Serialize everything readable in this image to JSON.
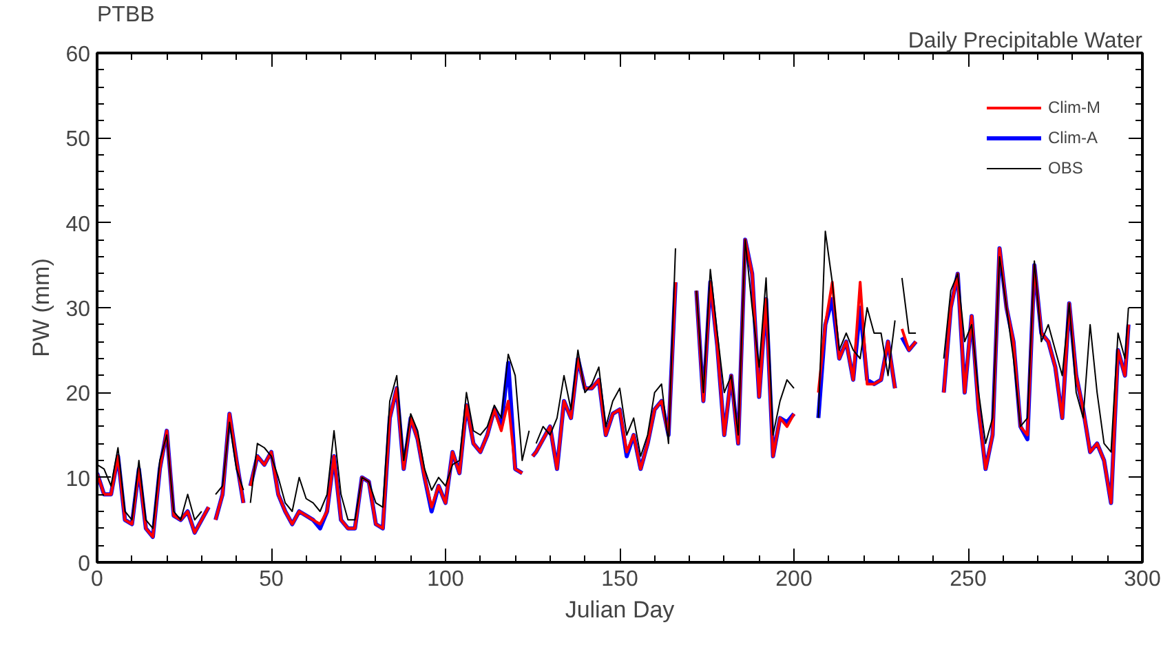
{
  "chart_data": {
    "type": "line",
    "title": "PTBB",
    "subtitle": "Daily Precipitable Water",
    "xlabel": "Julian Day",
    "ylabel": "PW (mm)",
    "xlim": [
      0,
      300
    ],
    "xticks": [
      0,
      50,
      100,
      150,
      200,
      250,
      300
    ],
    "ylim": [
      0,
      60
    ],
    "yticks": [
      0,
      10,
      20,
      30,
      40,
      50,
      60
    ],
    "grid": false,
    "legend": "top right",
    "marker": "none",
    "line_style": "solid",
    "series": [
      {
        "name": "Clim-M",
        "color": "#ff0000",
        "x": [
          0,
          2,
          4,
          6,
          8,
          10,
          12,
          14,
          16,
          18,
          20,
          22,
          24,
          26,
          28,
          30,
          32,
          33,
          34,
          36,
          38,
          40,
          42,
          43,
          44,
          46,
          48,
          50,
          52,
          54,
          56,
          58,
          60,
          62,
          64,
          66,
          68,
          70,
          72,
          74,
          76,
          78,
          80,
          82,
          84,
          86,
          88,
          90,
          92,
          94,
          96,
          98,
          100,
          102,
          104,
          106,
          108,
          110,
          112,
          114,
          116,
          118,
          120,
          122,
          123,
          125,
          126,
          128,
          130,
          132,
          134,
          136,
          138,
          140,
          142,
          144,
          146,
          148,
          150,
          152,
          154,
          156,
          158,
          160,
          162,
          164,
          166,
          169,
          172,
          174,
          176,
          178,
          180,
          182,
          184,
          186,
          188,
          190,
          192,
          194,
          196,
          198,
          200,
          204,
          207,
          209,
          211,
          213,
          215,
          217,
          219,
          221,
          223,
          225,
          227,
          229,
          230,
          231,
          233,
          235,
          239,
          243,
          245,
          247,
          249,
          251,
          253,
          255,
          257,
          259,
          261,
          263,
          265,
          267,
          269,
          271,
          273,
          275,
          277,
          279,
          281,
          283,
          285,
          287,
          289,
          291,
          293,
          295,
          296
        ],
        "values": [
          10.5,
          8,
          8,
          12.5,
          5,
          4.5,
          11,
          4,
          3,
          11,
          15.5,
          5.5,
          5,
          6,
          3.5,
          5,
          6.5,
          null,
          5,
          8,
          17.5,
          12,
          7,
          null,
          9,
          12.5,
          11.5,
          13,
          8,
          6,
          4.5,
          6,
          5.5,
          5,
          4.5,
          6,
          12.5,
          5,
          4,
          4,
          10,
          9.5,
          4.5,
          4,
          17,
          20.5,
          11,
          17,
          14.5,
          10,
          6.5,
          9,
          7,
          13,
          10.5,
          18.5,
          14,
          13,
          15,
          18,
          15.5,
          19,
          11,
          10.5,
          null,
          12.5,
          13,
          14.5,
          16,
          11,
          19,
          17,
          24,
          20.5,
          20.5,
          21.5,
          15,
          17.5,
          18,
          13,
          15,
          11,
          14,
          18,
          19,
          15,
          33,
          null,
          32,
          19,
          33,
          25.5,
          15,
          22,
          14,
          38,
          34,
          19.5,
          31,
          12.5,
          17,
          16,
          17.5,
          null,
          20,
          28,
          33,
          24,
          26,
          21.5,
          33,
          21,
          21,
          21.5,
          26,
          20.5,
          null,
          27.5,
          25,
          26,
          null,
          20,
          30,
          34,
          20,
          29,
          18,
          11,
          15,
          37,
          30,
          26,
          16,
          15,
          35,
          27,
          26,
          23,
          17,
          30.5,
          22,
          18,
          13,
          14,
          12,
          7,
          25,
          22,
          28
        ]
      },
      {
        "name": "Clim-A",
        "color": "#0000ff",
        "x": [
          0,
          2,
          4,
          6,
          8,
          10,
          12,
          14,
          16,
          18,
          20,
          22,
          24,
          26,
          28,
          30,
          32,
          33,
          34,
          36,
          38,
          40,
          42,
          43,
          44,
          46,
          48,
          50,
          52,
          54,
          56,
          58,
          60,
          62,
          64,
          66,
          68,
          70,
          72,
          74,
          76,
          78,
          80,
          82,
          84,
          86,
          88,
          90,
          92,
          94,
          96,
          98,
          100,
          102,
          104,
          106,
          108,
          110,
          112,
          114,
          116,
          118,
          120,
          122,
          123,
          125,
          126,
          128,
          130,
          132,
          134,
          136,
          138,
          140,
          142,
          144,
          146,
          148,
          150,
          152,
          154,
          156,
          158,
          160,
          162,
          164,
          166,
          169,
          172,
          174,
          176,
          178,
          180,
          182,
          184,
          186,
          188,
          190,
          192,
          194,
          196,
          198,
          200,
          204,
          207,
          209,
          211,
          213,
          215,
          217,
          219,
          221,
          223,
          225,
          227,
          229,
          230,
          231,
          233,
          235,
          239,
          243,
          245,
          247,
          249,
          251,
          253,
          255,
          257,
          259,
          261,
          263,
          265,
          267,
          269,
          271,
          273,
          275,
          277,
          279,
          281,
          283,
          285,
          287,
          289,
          291,
          293,
          295,
          296
        ],
        "values": [
          10.5,
          8,
          8,
          12.5,
          5,
          4.5,
          11,
          4,
          3,
          11,
          15.5,
          5.5,
          5,
          6,
          3.5,
          5,
          6.5,
          null,
          5,
          8,
          17.5,
          12,
          7,
          null,
          9,
          12.5,
          11.5,
          13,
          8,
          6,
          4.5,
          6,
          5.5,
          5,
          4,
          6,
          12.5,
          5,
          4,
          4,
          10,
          9.5,
          4.5,
          4,
          17,
          20.5,
          11,
          17,
          14.5,
          10,
          6,
          9,
          7,
          13,
          10.5,
          18.5,
          14,
          13,
          15,
          18,
          16,
          23.5,
          11,
          10.5,
          null,
          12.5,
          13,
          14.5,
          16,
          11,
          19,
          17,
          24,
          20.5,
          20.5,
          21.5,
          15,
          17.5,
          18,
          12.5,
          15,
          11,
          14,
          18,
          19,
          15,
          33,
          null,
          32,
          19,
          33,
          25.5,
          15,
          22,
          14,
          38,
          34,
          19.5,
          31,
          12.5,
          17,
          16.5,
          17.5,
          null,
          17,
          28,
          31,
          24,
          26,
          21.5,
          30,
          21.5,
          21,
          21.5,
          26,
          20.5,
          null,
          26.5,
          25,
          26,
          null,
          20,
          30,
          34,
          20,
          29,
          18,
          11,
          15,
          37,
          30,
          26,
          16,
          14.5,
          35,
          27,
          26,
          23,
          17,
          30.5,
          22,
          18,
          13,
          14,
          12,
          7,
          25,
          22,
          28
        ]
      },
      {
        "name": "OBS",
        "color": "#000000",
        "x": [
          0,
          2,
          4,
          6,
          8,
          10,
          12,
          14,
          16,
          18,
          20,
          22,
          24,
          26,
          28,
          30,
          32,
          34,
          36,
          38,
          40,
          42,
          43,
          44,
          46,
          48,
          50,
          52,
          54,
          56,
          58,
          60,
          62,
          64,
          66,
          68,
          70,
          72,
          74,
          76,
          78,
          80,
          82,
          84,
          86,
          88,
          90,
          92,
          94,
          96,
          98,
          100,
          102,
          104,
          106,
          108,
          110,
          112,
          114,
          116,
          118,
          120,
          122,
          124,
          125,
          126,
          128,
          130,
          132,
          134,
          136,
          138,
          140,
          142,
          144,
          146,
          148,
          150,
          152,
          154,
          156,
          158,
          160,
          162,
          164,
          166,
          169,
          172,
          174,
          176,
          178,
          180,
          182,
          184,
          186,
          188,
          190,
          192,
          194,
          196,
          198,
          200,
          204,
          207,
          209,
          211,
          213,
          215,
          217,
          219,
          221,
          223,
          225,
          227,
          229,
          230,
          231,
          233,
          235,
          239,
          243,
          245,
          247,
          249,
          251,
          253,
          255,
          257,
          259,
          261,
          263,
          265,
          267,
          269,
          271,
          273,
          275,
          277,
          279,
          281,
          283,
          285,
          287,
          289,
          291,
          293,
          295,
          296
        ],
        "values": [
          11.5,
          11,
          9,
          13.5,
          6,
          5,
          12,
          5,
          4,
          12,
          15,
          6,
          5,
          8,
          5,
          6,
          null,
          8,
          9,
          16.5,
          11,
          8.5,
          null,
          7,
          14,
          13.5,
          12.5,
          10,
          7,
          6,
          10,
          7.5,
          7,
          6,
          8,
          15.5,
          8,
          5,
          5,
          10,
          9.5,
          7,
          6.5,
          19,
          22,
          12,
          17.5,
          15.5,
          11,
          8.5,
          10,
          9,
          11.5,
          12,
          20,
          15.5,
          15,
          16,
          18.5,
          17,
          24.5,
          22,
          12,
          15.5,
          null,
          14,
          16,
          15,
          17,
          22,
          18,
          25,
          20,
          21,
          23,
          16,
          19,
          20.5,
          15,
          17,
          12.5,
          15,
          20,
          21,
          14,
          37,
          null,
          32,
          20,
          34.5,
          27,
          20,
          22,
          15,
          38,
          30,
          23,
          33.5,
          15,
          19,
          21.5,
          20.5,
          null,
          17,
          39,
          33,
          25,
          27,
          25,
          24,
          30,
          27,
          27,
          22,
          28.5,
          null,
          33.5,
          27,
          27,
          null,
          24,
          32,
          34,
          26,
          28,
          20,
          14,
          17,
          36,
          30,
          24,
          16,
          17,
          35.5,
          26,
          28,
          25,
          22,
          30.5,
          20,
          17,
          28,
          20,
          14,
          13,
          27,
          24,
          30
        ]
      }
    ]
  }
}
